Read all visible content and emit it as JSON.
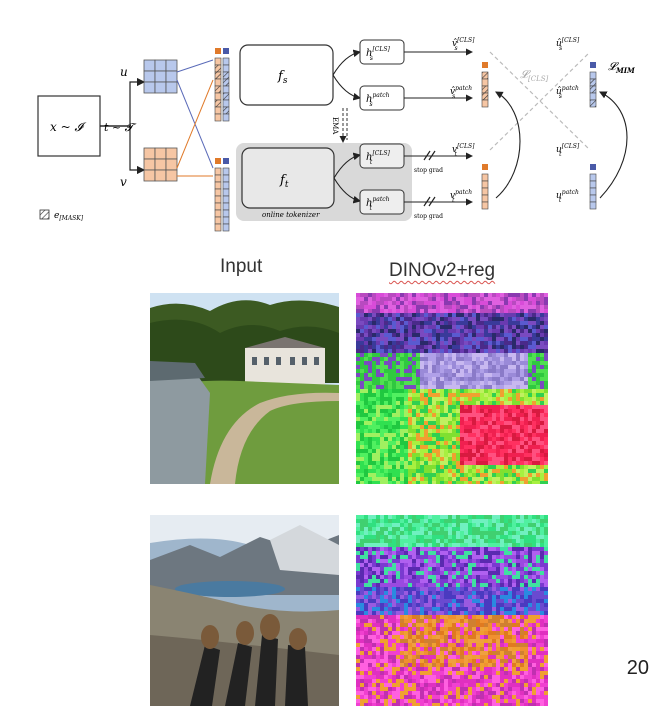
{
  "diagram": {
    "input_label": "x ~ 𝓘",
    "transform_label": "t ~ 𝓣",
    "view_u": "u",
    "view_v": "v",
    "student_net": "f",
    "student_sub": "s",
    "teacher_net": "f",
    "teacher_sub": "t",
    "ema_label": "EMA",
    "tokenizer_label": "online tokenizer",
    "head_s_cls": "h",
    "head_s_cls_sup": "[CLS]",
    "head_s_cls_sub": "s",
    "head_s_patch": "h",
    "head_s_patch_sup": "patch",
    "head_s_patch_sub": "s",
    "head_t_cls": "h",
    "head_t_cls_sup": "[CLS]",
    "head_t_cls_sub": "t",
    "head_t_patch": "h",
    "head_t_patch_sup": "patch",
    "head_t_patch_sub": "t",
    "stop_grad_1": "stop grad",
    "stop_grad_2": "stop grad",
    "out_vs_cls": "v̂",
    "out_vs_cls_sup": "[CLS]",
    "out_vs_cls_sub": "s",
    "out_vs_patch": "v̂",
    "out_vs_patch_sup": "patch",
    "out_vs_patch_sub": "s",
    "out_vt_cls": "v",
    "out_vt_cls_sup": "[CLS]",
    "out_vt_cls_sub": "t",
    "out_vt_patch": "v",
    "out_vt_patch_sup": "patch",
    "out_vt_patch_sub": "t",
    "out_us_cls": "û",
    "out_us_cls_sup": "[CLS]",
    "out_us_cls_sub": "s",
    "out_us_patch": "û",
    "out_us_patch_sup": "patch",
    "out_us_patch_sub": "s",
    "out_ut_cls": "u",
    "out_ut_cls_sup": "[CLS]",
    "out_ut_cls_sub": "t",
    "out_ut_patch": "u",
    "out_ut_patch_sup": "patch",
    "out_ut_patch_sub": "t",
    "loss_cls": "𝓛",
    "loss_cls_sub": "[CLS]",
    "loss_mim": "𝓛",
    "loss_mim_sub": "MIM",
    "mask_legend": "e",
    "mask_legend_sub": "[MASK]",
    "colors": {
      "view_u_fill": "#b8c8ec",
      "view_v_fill": "#f6c6a4",
      "cls_token": "#e07a2a",
      "cls_token_blue": "#4a5aa8",
      "teacher_bg": "#d9d9d9",
      "loss_line": "#bbbbbb"
    }
  },
  "headers": {
    "input": "Input",
    "dino": "DINOv2+reg"
  },
  "images": [
    {
      "name": "chateau-photo",
      "kind": "photo",
      "scene": "chateau"
    },
    {
      "name": "chateau-feature-map",
      "kind": "feature",
      "scene": "chateau"
    },
    {
      "name": "hikers-photo",
      "kind": "photo",
      "scene": "hikers"
    },
    {
      "name": "hikers-feature-map",
      "kind": "feature",
      "scene": "hikers"
    }
  ],
  "page_number": "20"
}
